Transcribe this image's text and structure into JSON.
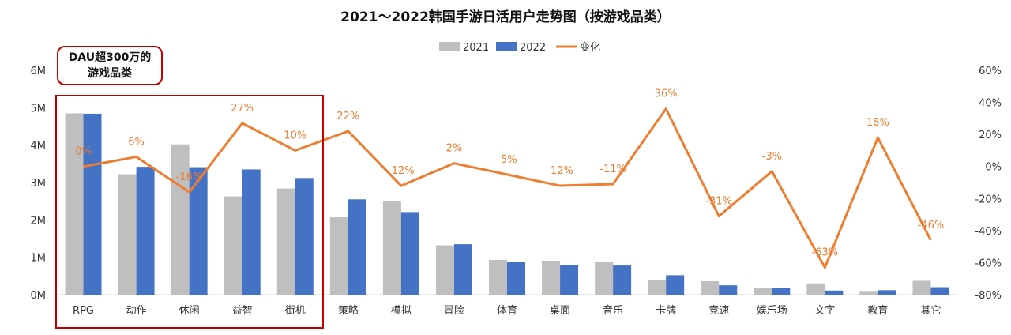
{
  "chart_data": {
    "type": "bar",
    "title": "2021～2022韩国手游日活用户走势图（按游戏品类）",
    "categories": [
      "RPG",
      "动作",
      "休闲",
      "益智",
      "街机",
      "策略",
      "模拟",
      "冒险",
      "体育",
      "桌面",
      "音乐",
      "卡牌",
      "竞速",
      "娱乐场",
      "文字",
      "教育",
      "其它"
    ],
    "series": [
      {
        "name": "2021",
        "type": "bar",
        "axis": "left",
        "color": "#bfbfbf",
        "values": [
          4.85,
          3.22,
          4.02,
          2.63,
          2.84,
          2.07,
          2.51,
          1.32,
          0.93,
          0.91,
          0.88,
          0.38,
          0.36,
          0.19,
          0.3,
          0.1,
          0.37
        ]
      },
      {
        "name": "2022",
        "type": "bar",
        "axis": "left",
        "color": "#4472c4",
        "values": [
          4.84,
          3.42,
          3.41,
          3.35,
          3.12,
          2.55,
          2.21,
          1.35,
          0.88,
          0.8,
          0.78,
          0.52,
          0.25,
          0.19,
          0.11,
          0.12,
          0.2
        ]
      },
      {
        "name": "变化",
        "type": "line",
        "axis": "right",
        "color": "#ed7d31",
        "values": [
          0,
          6,
          -16,
          27,
          10,
          22,
          -12,
          2,
          -5,
          -12,
          -11,
          36,
          -31,
          -3,
          -63,
          18,
          -46
        ],
        "labels": [
          "0%",
          "6%",
          "-16%",
          "27%",
          "10%",
          "22%",
          "-12%",
          "2%",
          "-5%",
          "-12%",
          "-11%",
          "36%",
          "-31%",
          "-3%",
          "-63%",
          "18%",
          "-46%"
        ]
      }
    ],
    "y_left": {
      "min": 0,
      "max": 6,
      "ticks": [
        "0M",
        "1M",
        "2M",
        "3M",
        "4M",
        "5M",
        "6M"
      ]
    },
    "y_right": {
      "min": -80,
      "max": 60,
      "ticks": [
        "-80%",
        "-60%",
        "-40%",
        "-20%",
        "0%",
        "20%",
        "40%",
        "60%"
      ]
    },
    "legend": {
      "position": "top-center",
      "entries": [
        "2021",
        "2022",
        "变化"
      ]
    },
    "grid": false
  },
  "callout": {
    "line1": "DAU超300万的",
    "line2": "游戏品类",
    "highlight_count": 5
  }
}
